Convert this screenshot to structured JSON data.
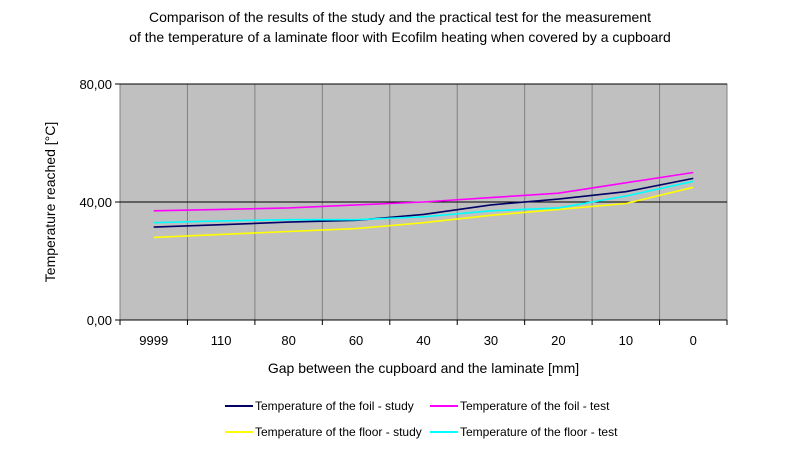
{
  "chart_data": {
    "type": "line",
    "title": "Comparison of the results of the study and the practical test for the measurement",
    "subtitle": "of the temperature of a laminate floor with Ecofilm heating when covered by a cupboard",
    "xlabel": "Gap between the cupboard and the laminate [mm]",
    "ylabel": "Temperature reached [°C]",
    "categories": [
      "9999",
      "110",
      "80",
      "60",
      "40",
      "30",
      "20",
      "10",
      "0"
    ],
    "ylim": [
      0,
      80
    ],
    "yticks": [
      "0,00",
      "40,00",
      "80,00"
    ],
    "grid": true,
    "plot_background": "#c0c0c0",
    "legend_position": "bottom",
    "series": [
      {
        "name": "Temperature of the foil - study",
        "color": "#000066",
        "values": [
          31.5,
          32.3,
          33.2,
          33.8,
          35.8,
          39.0,
          41.0,
          43.5,
          48.0
        ]
      },
      {
        "name": "Temperature of the foil - test",
        "color": "#ff00ff",
        "values": [
          37.0,
          37.5,
          38.0,
          39.0,
          40.0,
          41.5,
          43.0,
          46.5,
          50.0
        ]
      },
      {
        "name": "Temperature of the floor - study",
        "color": "#ffff00",
        "values": [
          28.0,
          29.0,
          30.0,
          31.0,
          33.0,
          35.5,
          37.5,
          39.5,
          45.0
        ]
      },
      {
        "name": "Temperature of the floor - test",
        "color": "#00ffff",
        "values": [
          33.0,
          33.6,
          34.0,
          34.0,
          35.0,
          37.0,
          38.0,
          42.0,
          47.0
        ]
      }
    ]
  }
}
